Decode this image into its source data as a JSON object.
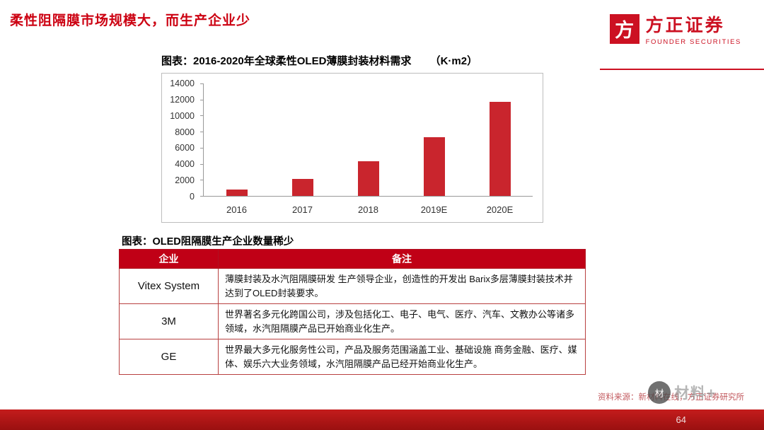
{
  "slide": {
    "title": "柔性阻隔膜市场规模大，而生产企业少",
    "page_number": "64"
  },
  "logo": {
    "mark": "方",
    "name_cn": "方正证券",
    "name_en": "FOUNDER SECURITIES",
    "brand_color": "#cc1122"
  },
  "chart_section": {
    "title": "图表：2016-2020年全球柔性OLED薄膜封装材料需求",
    "unit": "（K·m2）"
  },
  "chart_data": {
    "type": "bar",
    "categories": [
      "2016",
      "2017",
      "2018",
      "2019E",
      "2020E"
    ],
    "values": [
      800,
      2100,
      4300,
      7300,
      11700
    ],
    "title": "2016-2020年全球柔性OLED薄膜封装材料需求（K·m2）",
    "xlabel": "",
    "ylabel": "",
    "ylim": [
      0,
      14000
    ],
    "ytick_interval": 2000,
    "bar_color": "#c9252d",
    "grid": false,
    "legend": "none"
  },
  "table_section": {
    "title": "图表：OLED阻隔膜生产企业数量稀少",
    "headers": [
      "企业",
      "备注"
    ],
    "rows": [
      {
        "company": "Vitex System",
        "note": "薄膜封装及水汽阻隔膜研发 生产领导企业，创造性的开发出 Barix多层薄膜封装技术并达到了OLED封装要求。"
      },
      {
        "company": "3M",
        "note": "世界著名多元化跨国公司，涉及包括化工、电子、电气、医疗、汽车、文教办公等诸多领域，水汽阻隔膜产品已开始商业化生产。"
      },
      {
        "company": "GE",
        "note": "世界最大多元化服务性公司，产品及服务范围涵盖工业、基础设施 商务金融、医疗、媒体、娱乐六大业务领域，水汽阻隔膜产品已经开始商业化生产。"
      }
    ]
  },
  "footer": {
    "source": "资料来源：新材料在线，方正证券研究所",
    "watermark": "材料+"
  }
}
